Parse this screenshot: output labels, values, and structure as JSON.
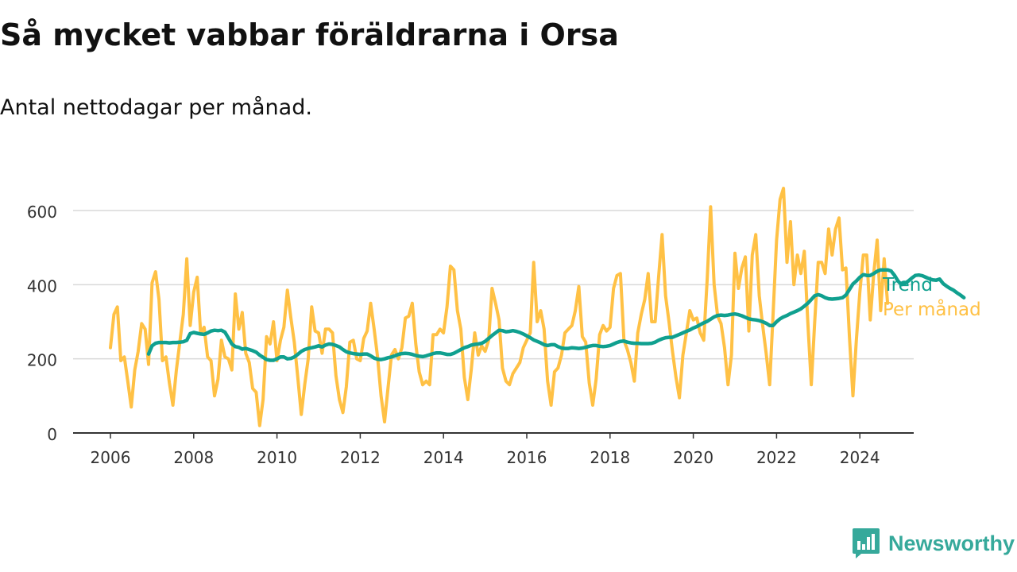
{
  "header": {
    "title": "Så mycket vabbar föräldrarna i Orsa",
    "subtitle": "Antal nettodagar per månad."
  },
  "brand": {
    "name": "Newsworthy",
    "icon": "newsworthy-logo-icon",
    "color": "#36a99b"
  },
  "colors": {
    "trend": "#10a08f",
    "monthly": "#ffc145",
    "grid": "#d9d9d9",
    "axis": "#333333"
  },
  "chart_data": {
    "type": "line",
    "xlim": [
      2006,
      2024.5
    ],
    "ylim": [
      0,
      700
    ],
    "x_ticks": [
      "2006",
      "2008",
      "2010",
      "2012",
      "2014",
      "2016",
      "2018",
      "2020",
      "2022",
      "2024"
    ],
    "y_ticks": [
      "0",
      "200",
      "400",
      "600"
    ],
    "grid": "horizontal",
    "legend": "line-end labels",
    "series": [
      {
        "name": "Per månad",
        "start": "2006-01",
        "values": [
          230,
          320,
          340,
          195,
          205,
          140,
          70,
          170,
          220,
          295,
          280,
          185,
          405,
          435,
          360,
          195,
          205,
          135,
          75,
          170,
          245,
          320,
          470,
          290,
          380,
          420,
          270,
          285,
          205,
          195,
          100,
          145,
          250,
          205,
          200,
          170,
          375,
          280,
          325,
          215,
          190,
          120,
          110,
          20,
          90,
          260,
          240,
          300,
          195,
          250,
          285,
          385,
          310,
          245,
          150,
          50,
          130,
          200,
          340,
          275,
          270,
          215,
          280,
          280,
          270,
          155,
          90,
          55,
          125,
          245,
          250,
          200,
          195,
          255,
          275,
          350,
          280,
          205,
          100,
          30,
          120,
          210,
          225,
          200,
          230,
          310,
          315,
          350,
          240,
          165,
          130,
          140,
          130,
          265,
          265,
          280,
          270,
          340,
          450,
          440,
          330,
          280,
          150,
          90,
          170,
          270,
          210,
          235,
          220,
          250,
          390,
          350,
          305,
          175,
          140,
          130,
          160,
          175,
          190,
          230,
          250,
          270,
          460,
          300,
          330,
          280,
          140,
          75,
          165,
          175,
          210,
          270,
          280,
          290,
          330,
          395,
          260,
          245,
          135,
          75,
          145,
          265,
          290,
          275,
          285,
          390,
          425,
          430,
          250,
          225,
          190,
          140,
          270,
          320,
          360,
          430,
          300,
          300,
          420,
          535,
          370,
          300,
          220,
          150,
          95,
          210,
          270,
          330,
          305,
          310,
          270,
          250,
          415,
          610,
          400,
          315,
          295,
          230,
          130,
          210,
          485,
          390,
          445,
          475,
          275,
          480,
          535,
          370,
          290,
          215,
          130,
          320,
          520,
          630,
          660,
          460,
          570,
          400,
          480,
          430,
          490,
          300,
          130,
          300,
          460,
          460,
          430,
          550,
          480,
          550,
          580,
          440,
          445,
          260,
          100,
          250,
          380,
          480,
          480,
          305,
          430,
          520,
          330,
          470,
          350
        ]
      },
      {
        "name": "Trend",
        "start": "2006-12",
        "values": [
          213,
          235,
          242,
          244,
          244,
          244,
          243,
          244,
          244,
          245,
          246,
          250,
          268,
          271,
          269,
          267,
          266,
          270,
          275,
          277,
          276,
          277,
          272,
          256,
          240,
          233,
          231,
          226,
          228,
          225,
          222,
          218,
          210,
          204,
          198,
          196,
          196,
          200,
          205,
          205,
          200,
          201,
          205,
          212,
          220,
          225,
          228,
          230,
          232,
          235,
          232,
          237,
          240,
          239,
          236,
          232,
          225,
          219,
          216,
          214,
          213,
          212,
          213,
          213,
          208,
          202,
          199,
          198,
          200,
          203,
          205,
          208,
          212,
          214,
          215,
          214,
          212,
          209,
          207,
          206,
          208,
          211,
          214,
          216,
          216,
          214,
          212,
          212,
          215,
          220,
          225,
          230,
          233,
          237,
          239,
          240,
          242,
          247,
          255,
          263,
          270,
          277,
          276,
          273,
          274,
          276,
          274,
          271,
          267,
          262,
          257,
          251,
          247,
          243,
          238,
          236,
          238,
          238,
          233,
          229,
          228,
          228,
          230,
          229,
          228,
          229,
          231,
          234,
          236,
          236,
          234,
          233,
          234,
          236,
          240,
          244,
          247,
          248,
          245,
          243,
          242,
          242,
          241,
          241,
          241,
          242,
          245,
          250,
          254,
          257,
          258,
          258,
          262,
          266,
          270,
          274,
          278,
          283,
          287,
          292,
          297,
          301,
          307,
          313,
          317,
          318,
          317,
          318,
          320,
          321,
          319,
          316,
          312,
          308,
          306,
          305,
          303,
          300,
          296,
          290,
          290,
          300,
          308,
          313,
          317,
          322,
          326,
          330,
          335,
          342,
          350,
          360,
          370,
          373,
          370,
          365,
          362,
          361,
          362,
          363,
          365,
          372,
          387,
          402,
          410,
          420,
          427,
          425,
          425,
          430,
          436,
          440,
          440,
          440,
          437,
          425,
          410,
          400,
          404,
          410,
          418,
          425,
          426,
          424,
          420,
          416,
          413,
          412,
          415,
          403,
          396,
          390,
          385,
          378,
          372,
          365
        ]
      }
    ]
  }
}
